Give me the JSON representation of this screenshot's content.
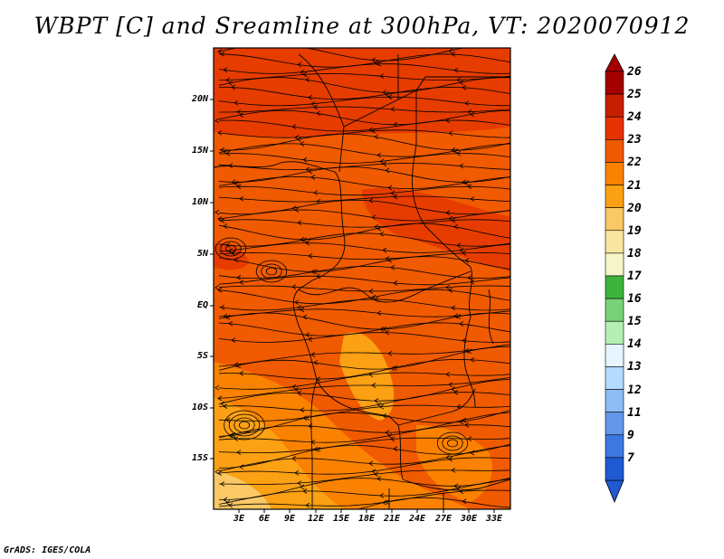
{
  "title": "WBPT [C] and Sreamline at 300hPa, VT: 2020070912",
  "footer": "GrADS: IGES/COLA",
  "map": {
    "lat_ticks": [
      "20N",
      "15N",
      "10N",
      "5N",
      "EQ",
      "5S",
      "10S",
      "15S"
    ],
    "lon_ticks": [
      "3E",
      "6E",
      "9E",
      "12E",
      "15E",
      "18E",
      "21E",
      "24E",
      "27E",
      "30E",
      "33E"
    ]
  },
  "colorbar": {
    "labels": [
      "26",
      "25",
      "24",
      "23",
      "22",
      "21",
      "20",
      "19",
      "18",
      "17",
      "16",
      "15",
      "14",
      "13",
      "12",
      "11",
      "9",
      "7"
    ],
    "colors": [
      "#a50000",
      "#c81e00",
      "#e63200",
      "#f05a00",
      "#fa8200",
      "#fca014",
      "#fac864",
      "#fae6a0",
      "#f5f5c8",
      "#3cb43c",
      "#78d278",
      "#b4f0b4",
      "#e6f5ff",
      "#b4dcff",
      "#8cbef5",
      "#6496eb",
      "#3c78e1",
      "#1e5ad2"
    ]
  },
  "field_colors": {
    "dark_red": "#e63c00",
    "orange_red": "#f05a00",
    "orange": "#fa8200",
    "light_orange": "#fca014",
    "yellow_orange": "#fac864"
  }
}
